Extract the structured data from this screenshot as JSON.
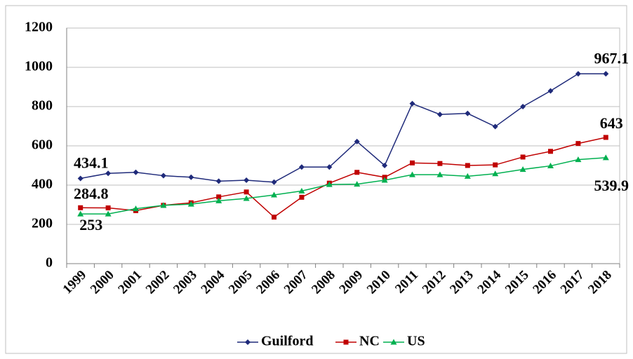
{
  "chart_data": {
    "type": "line",
    "categories": [
      "1999",
      "2000",
      "2001",
      "2002",
      "2003",
      "2004",
      "2005",
      "2006",
      "2007",
      "2008",
      "2009",
      "2010",
      "2011",
      "2012",
      "2013",
      "2014",
      "2015",
      "2016",
      "2017",
      "2018"
    ],
    "series": [
      {
        "name": "Guilford",
        "color": "#1f2a7a",
        "values": [
          434.1,
          460,
          465,
          448,
          440,
          420,
          425,
          415,
          492,
          492,
          622,
          500,
          815,
          760,
          765,
          698,
          800,
          880,
          967,
          967.1
        ]
      },
      {
        "name": "NC",
        "color": "#c00000",
        "values": [
          284.8,
          284,
          270,
          297,
          310,
          340,
          365,
          237,
          338,
          410,
          465,
          440,
          513,
          510,
          500,
          503,
          543,
          572,
          612,
          643
        ]
      },
      {
        "name": "US",
        "color": "#00b050",
        "values": [
          253,
          253,
          280,
          297,
          303,
          320,
          332,
          350,
          370,
          403,
          405,
          425,
          453,
          453,
          445,
          458,
          480,
          498,
          530,
          539.9
        ]
      }
    ],
    "ylim": [
      0,
      1200
    ],
    "yticks": [
      0,
      200,
      400,
      600,
      800,
      1000,
      1200
    ],
    "grid": true,
    "legend": "bottom"
  }
}
